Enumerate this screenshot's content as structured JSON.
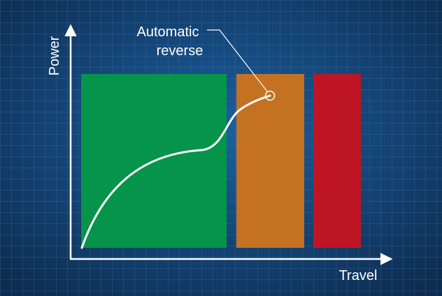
{
  "diagram": {
    "y_axis_label": "Power",
    "x_axis_label": "Travel",
    "annotation_lines": [
      "Automatic",
      "reverse"
    ],
    "zones": [
      {
        "name": "green-zone",
        "color": "#05944a"
      },
      {
        "name": "orange-zone",
        "color": "#c47222"
      },
      {
        "name": "red-zone",
        "color": "#be1524"
      }
    ],
    "colors": {
      "background_center": "#1c5fa0",
      "background_edge": "#0d2c4f",
      "grid_line": "#4f88c0",
      "axis": "#ffffff",
      "curve": "#ffffff"
    }
  }
}
